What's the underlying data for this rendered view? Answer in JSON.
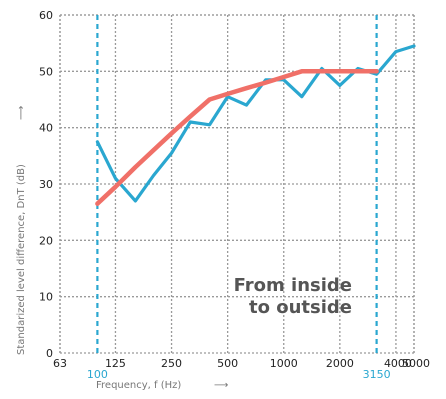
{
  "chart_data": {
    "type": "line",
    "title": "",
    "xlabel": "Frequency, f (Hz)",
    "ylabel": "Standarized level difference, DnT (dB)",
    "x_scale": "log",
    "xlim": [
      63,
      5000
    ],
    "ylim": [
      0,
      60
    ],
    "x_ticks": [
      "63",
      "125",
      "250",
      "500",
      "1000",
      "2000",
      "4000",
      "5000"
    ],
    "y_ticks": [
      "0",
      "10",
      "20",
      "30",
      "40",
      "50",
      "60"
    ],
    "highlight_ticks": [
      "100",
      "3150"
    ],
    "highlight_lines_x": [
      100,
      3150
    ],
    "grid": true,
    "annotation": [
      "From inside",
      "to outside"
    ],
    "series": [
      {
        "color": "#2aa7d0",
        "x": [
          100,
          125,
          160,
          200,
          250,
          315,
          400,
          500,
          630,
          800,
          1000,
          1250,
          1600,
          2000,
          2500,
          3150,
          4000,
          5000
        ],
        "y": [
          37.5,
          31,
          27,
          31.5,
          35.5,
          41,
          40.5,
          45.5,
          44,
          48.5,
          48.5,
          45.5,
          50.5,
          47.5,
          50.5,
          49.5,
          53.5,
          54.5
        ]
      },
      {
        "color": "#f07068",
        "x": [
          100,
          125,
          160,
          200,
          250,
          315,
          400,
          500,
          630,
          800,
          1000,
          1250,
          1600,
          2000,
          2500,
          3150
        ],
        "y": [
          26.5,
          29.5,
          33,
          36,
          39,
          42,
          45,
          46,
          47,
          48,
          49,
          50,
          50,
          50,
          50,
          50
        ]
      }
    ]
  }
}
